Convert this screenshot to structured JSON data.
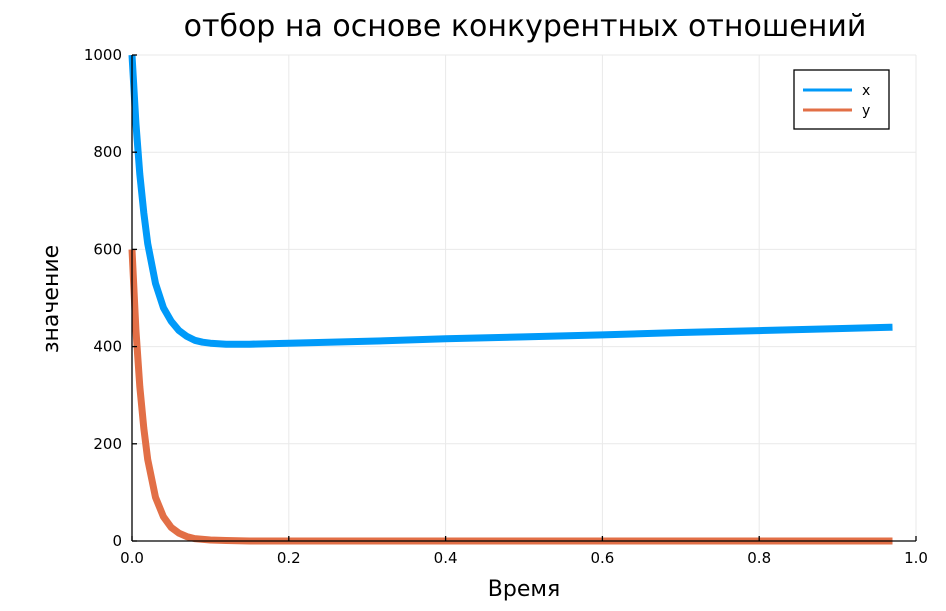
{
  "chart_data": {
    "type": "line",
    "title": "отбор на основе конкурентных отношений",
    "xlabel": "Время",
    "ylabel": "значение",
    "xlim": [
      0.0,
      1.0
    ],
    "ylim": [
      0,
      1000
    ],
    "xticks": [
      "0.0",
      "0.2",
      "0.4",
      "0.6",
      "0.8",
      "1.0"
    ],
    "yticks": [
      "0",
      "200",
      "400",
      "600",
      "800",
      "1000"
    ],
    "grid": true,
    "legend_position": "top-right",
    "series": [
      {
        "name": "x",
        "color": "#009af9",
        "x": [
          0.0,
          0.005,
          0.01,
          0.015,
          0.02,
          0.03,
          0.04,
          0.05,
          0.06,
          0.07,
          0.08,
          0.09,
          0.1,
          0.12,
          0.15,
          0.2,
          0.3,
          0.4,
          0.5,
          0.6,
          0.7,
          0.8,
          0.9,
          0.97
        ],
        "y": [
          1000,
          860,
          755,
          675,
          612,
          530,
          480,
          452,
          433,
          421,
          413,
          409,
          407,
          405,
          405,
          407,
          411,
          416,
          420,
          424,
          429,
          433,
          437,
          440
        ]
      },
      {
        "name": "y",
        "color": "#e26f46",
        "x": [
          0.0,
          0.005,
          0.01,
          0.015,
          0.02,
          0.03,
          0.04,
          0.05,
          0.06,
          0.07,
          0.08,
          0.1,
          0.12,
          0.15,
          0.2,
          0.3,
          0.5,
          0.7,
          0.97
        ],
        "y": [
          600,
          435,
          318,
          232,
          168,
          90,
          50,
          28,
          16,
          9,
          5,
          2,
          1,
          0,
          0,
          0,
          0,
          0,
          0
        ]
      }
    ]
  }
}
